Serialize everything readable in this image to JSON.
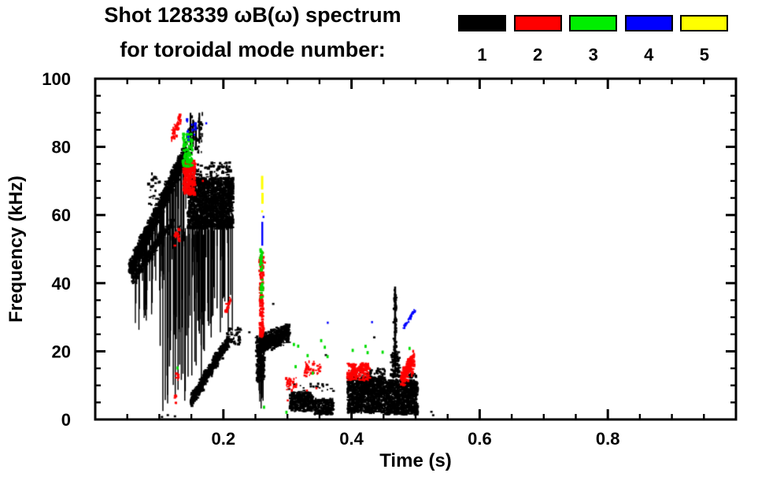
{
  "title": {
    "line1": "Shot 128339 ωB(ω) spectrum",
    "line2": "for toroidal mode number:"
  },
  "legend": {
    "items": [
      {
        "label": "1",
        "color": "#000000"
      },
      {
        "label": "2",
        "color": "#ff0000"
      },
      {
        "label": "3",
        "color": "#00ee00"
      },
      {
        "label": "4",
        "color": "#0000ff"
      },
      {
        "label": "5",
        "color": "#ffff00"
      }
    ]
  },
  "axes": {
    "x": {
      "label": "Time (s)",
      "min": 0,
      "max": 1.0,
      "major_ticks": [
        0.2,
        0.4,
        0.6,
        0.8
      ],
      "major_labels": [
        "0.2",
        "0.4",
        "0.6",
        "0.8"
      ],
      "minor_step": 0.05
    },
    "y": {
      "label": "Frequency (kHz)",
      "min": 0,
      "max": 100,
      "major_ticks": [
        0,
        20,
        40,
        60,
        80,
        100
      ],
      "major_labels": [
        "0",
        "20",
        "40",
        "60",
        "80",
        "100"
      ],
      "minor_step": 5
    }
  },
  "chart_data": {
    "type": "scatter",
    "subtype": "mode-spectrogram",
    "title": "Shot 128339 ωB(ω) spectrum for toroidal mode number",
    "xlabel": "Time (s)",
    "ylabel": "Frequency (kHz)",
    "xlim": [
      0,
      1.0
    ],
    "ylim": [
      0,
      100
    ],
    "grid": false,
    "legend_position": "top-right",
    "series": [
      {
        "name": "n=1",
        "mode": 1,
        "color": "#000000",
        "clusters": [
          {
            "kind": "diag",
            "from": [
              0.055,
              44
            ],
            "to": [
              0.143,
              79
            ],
            "th": 7,
            "n": 1500
          },
          {
            "kind": "diag",
            "from": [
              0.058,
              41
            ],
            "to": [
              0.12,
              58
            ],
            "th": 4,
            "n": 260
          },
          {
            "kind": "vlines",
            "t": [
              0.06,
              0.145
            ],
            "top": [
              46,
              78
            ],
            "len": [
              4,
              24
            ],
            "n": 75,
            "w": 1.4
          },
          {
            "kind": "vlines",
            "t": [
              0.1,
              0.172
            ],
            "top": [
              55,
              55
            ],
            "len": [
              18,
              52
            ],
            "n": 42,
            "w": 1.5
          },
          {
            "kind": "blob",
            "t": [
              0.145,
              0.215
            ],
            "f": [
              56,
              71
            ],
            "n": 1700
          },
          {
            "kind": "blob",
            "t": [
              0.15,
              0.212
            ],
            "f": [
              70.5,
              75.5
            ],
            "n": 80
          },
          {
            "kind": "vlines",
            "t": [
              0.147,
              0.215
            ],
            "top": [
              57,
              57
            ],
            "len": [
              6,
              32
            ],
            "n": 55,
            "w": 1.5
          },
          {
            "kind": "blob",
            "t": [
              0.082,
              0.102
            ],
            "f": [
              63,
              73
            ],
            "n": 28
          },
          {
            "kind": "blob",
            "t": [
              0.145,
              0.168
            ],
            "f": [
              78,
              90
            ],
            "n": 60,
            "w": 2,
            "h": 3.2
          },
          {
            "kind": "vdash",
            "at": 0.1487,
            "f": [
              79,
              90
            ],
            "w": 2.2
          },
          {
            "kind": "vdash",
            "at": 0.1527,
            "f": [
              80,
              88
            ],
            "w": 2.2
          },
          {
            "kind": "vdash",
            "at": 0.1572,
            "f": [
              79,
              86
            ],
            "w": 2.2
          },
          {
            "kind": "vdash",
            "at": 0.1625,
            "f": [
              81,
              90
            ],
            "w": 2.2
          },
          {
            "kind": "diag",
            "from": [
              0.15,
              5.5
            ],
            "to": [
              0.208,
              23
            ],
            "th": 4.5,
            "n": 600
          },
          {
            "kind": "blob",
            "t": [
              0.205,
              0.228
            ],
            "f": [
              22,
              27
            ],
            "n": 45
          },
          {
            "kind": "diag",
            "from": [
              0.2525,
              21.5
            ],
            "to": [
              0.302,
              25.5
            ],
            "th": 6.5,
            "n": 650
          },
          {
            "kind": "blob",
            "t": [
              0.252,
              0.264
            ],
            "f": [
              11,
              21
            ],
            "n": 170
          },
          {
            "kind": "blob",
            "t": [
              0.2575,
              0.2625
            ],
            "f": [
              12,
              26
            ],
            "n": 90
          },
          {
            "kind": "vlines",
            "t": [
              0.2545,
              0.2625
            ],
            "top": [
              12,
              12
            ],
            "len": [
              4,
              10
            ],
            "n": 8,
            "w": 1.4
          },
          {
            "kind": "blob",
            "t": [
              0.304,
              0.34
            ],
            "f": [
              2.5,
              8
            ],
            "n": 300
          },
          {
            "kind": "blob",
            "t": [
              0.342,
              0.372
            ],
            "f": [
              1.5,
              6
            ],
            "n": 200
          },
          {
            "kind": "blob",
            "t": [
              0.3,
              0.372
            ],
            "f": [
              8,
              10.5
            ],
            "n": 20
          },
          {
            "kind": "blob",
            "t": [
              0.394,
              0.452
            ],
            "f": [
              2,
              12.5
            ],
            "n": 950
          },
          {
            "kind": "blob",
            "t": [
              0.4,
              0.452
            ],
            "f": [
              12.5,
              15
            ],
            "n": 45
          },
          {
            "kind": "blob",
            "t": [
              0.453,
              0.503
            ],
            "f": [
              1.5,
              11.5
            ],
            "n": 850
          },
          {
            "kind": "blob",
            "t": [
              0.46,
              0.503
            ],
            "f": [
              11.5,
              13.5
            ],
            "n": 30
          },
          {
            "kind": "vdash",
            "at": 0.468,
            "f": [
              13,
              39
            ],
            "w": 2.6
          },
          {
            "kind": "blob",
            "t": [
              0.4655,
              0.4705
            ],
            "f": [
              14,
              38
            ],
            "n": 60,
            "w": 2,
            "h": 3
          },
          {
            "kind": "blob",
            "t": [
              0.462,
              0.475
            ],
            "f": [
              12,
              20
            ],
            "n": 70
          },
          {
            "kind": "specks",
            "pts": [
              [
                0.525,
                2.3
              ],
              [
                0.278,
                34
              ],
              [
                0.24,
                25.5
              ],
              [
                0.528,
                1.2
              ],
              [
                0.36,
                18.8
              ],
              [
                0.435,
                24
              ],
              [
                0.104,
                0.8
              ],
              [
                0.113,
                1.3
              ],
              [
                0.125,
                1.0
              ]
            ],
            "w": 3,
            "h": 2.6
          }
        ]
      },
      {
        "name": "n=2",
        "mode": 2,
        "color": "#ff0000",
        "clusters": [
          {
            "kind": "blob",
            "t": [
              0.138,
              0.156
            ],
            "f": [
              66,
              76
            ],
            "n": 260
          },
          {
            "kind": "diag",
            "from": [
              0.12,
              83
            ],
            "to": [
              0.133,
              88
            ],
            "th": 5,
            "n": 55,
            "w": 2.4,
            "h": 2.4
          },
          {
            "kind": "blob",
            "t": [
              0.124,
              0.132
            ],
            "f": [
              51,
              56
            ],
            "n": 22,
            "w": 2.4,
            "h": 2.4
          },
          {
            "kind": "blob",
            "t": [
              0.1265,
              0.13
            ],
            "f": [
              11.5,
              13.8
            ],
            "n": 10,
            "w": 2.4,
            "h": 2.4
          },
          {
            "kind": "blob",
            "t": [
              0.1235,
              0.127
            ],
            "f": [
              4.8,
              7.0
            ],
            "n": 8,
            "w": 2.4,
            "h": 2.4
          },
          {
            "kind": "blob",
            "t": [
              0.2565,
              0.2625
            ],
            "f": [
              24,
              48
            ],
            "n": 150,
            "w": 2.4,
            "h": 2.8
          },
          {
            "kind": "blob",
            "t": [
              0.297,
              0.315
            ],
            "f": [
              8.5,
              12.5
            ],
            "n": 28,
            "w": 2.4,
            "h": 2.4
          },
          {
            "kind": "blob",
            "t": [
              0.326,
              0.352
            ],
            "f": [
              12.5,
              17
            ],
            "n": 40,
            "w": 2.4,
            "h": 2.4
          },
          {
            "kind": "blob",
            "t": [
              0.394,
              0.428
            ],
            "f": [
              11.5,
              16.5
            ],
            "n": 160
          },
          {
            "kind": "diag",
            "from": [
              0.478,
              11.5
            ],
            "to": [
              0.497,
              17.5
            ],
            "th": 7,
            "n": 190
          },
          {
            "kind": "diag",
            "from": [
              0.203,
              31.5
            ],
            "to": [
              0.21,
              35.5
            ],
            "th": 2,
            "n": 14,
            "w": 2.4,
            "h": 2.4
          },
          {
            "kind": "specks",
            "pts": [
              [
                0.262,
                49
              ],
              [
                0.265,
                46
              ],
              [
                0.168,
                70
              ],
              [
                0.33,
                8.5
              ],
              [
                0.345,
                9.2
              ],
              [
                0.3,
                5.5
              ]
            ],
            "w": 2.6,
            "h": 2.6
          }
        ]
      },
      {
        "name": "n=3",
        "mode": 3,
        "color": "#00dd00",
        "clusters": [
          {
            "kind": "blob",
            "t": [
              0.137,
              0.152
            ],
            "f": [
              74,
              84
            ],
            "n": 110,
            "w": 2.6,
            "h": 2.6
          },
          {
            "kind": "blob",
            "t": [
              0.2575,
              0.261
            ],
            "f": [
              43.5,
              50
            ],
            "n": 20,
            "w": 2.4,
            "h": 2.6
          },
          {
            "kind": "blob",
            "t": [
              0.2585,
              0.2615
            ],
            "f": [
              35.5,
              41
            ],
            "n": 16,
            "w": 2.4,
            "h": 2.6
          },
          {
            "kind": "specks",
            "pts": [
              [
                0.31,
                21.9
              ],
              [
                0.317,
                21.5
              ],
              [
                0.353,
                23.1
              ],
              [
                0.363,
                18.5
              ],
              [
                0.332,
                18.7
              ],
              [
                0.422,
                21.5
              ],
              [
                0.425,
                19.6
              ],
              [
                0.402,
                20.2
              ],
              [
                0.49,
                20.8
              ],
              [
                0.313,
                15.5
              ],
              [
                0.358,
                21.2
              ],
              [
                0.449,
                19.8
              ],
              [
                0.128,
                15.0
              ],
              [
                0.263,
                3.7
              ],
              [
                0.298,
                2.2
              ],
              [
                0.34,
                13.5
              ]
            ],
            "w": 2.8,
            "h": 4
          }
        ]
      },
      {
        "name": "n=4",
        "mode": 4,
        "color": "#0000ff",
        "clusters": [
          {
            "kind": "blob",
            "t": [
              0.142,
              0.158
            ],
            "f": [
              82,
              88
            ],
            "n": 16,
            "w": 2.2,
            "h": 2.8
          },
          {
            "kind": "vdash",
            "at": 0.2607,
            "f": [
              51,
              58
            ],
            "w": 2.4
          },
          {
            "kind": "diag",
            "from": [
              0.4815,
              27
            ],
            "to": [
              0.486,
              28.6
            ],
            "th": 1.4,
            "n": 10,
            "w": 2.2,
            "h": 2.2
          },
          {
            "kind": "diag",
            "from": [
              0.4875,
              28.8
            ],
            "to": [
              0.492,
              30.2
            ],
            "th": 1.4,
            "n": 10,
            "w": 2.2,
            "h": 2.2
          },
          {
            "kind": "diag",
            "from": [
              0.494,
              30.6
            ],
            "to": [
              0.499,
              32.2
            ],
            "th": 1.4,
            "n": 9,
            "w": 2.2,
            "h": 2.2
          },
          {
            "kind": "specks",
            "pts": [
              [
                0.363,
                28.4
              ],
              [
                0.432,
                28.6
              ],
              [
                0.173,
                86.8
              ],
              [
                0.262,
                59.5
              ]
            ],
            "w": 2.4,
            "h": 2.8
          }
        ]
      },
      {
        "name": "n=5",
        "mode": 5,
        "color": "#ffff00",
        "clusters": [
          {
            "kind": "vdash",
            "at": 0.2605,
            "f": [
              67.5,
              71.5
            ],
            "w": 3
          },
          {
            "kind": "vdash",
            "at": 0.261,
            "f": [
              63.3,
              66.5
            ],
            "w": 3
          },
          {
            "kind": "specks",
            "pts": [
              [
                0.26,
                61.0
              ]
            ],
            "w": 2.5,
            "h": 3
          }
        ]
      }
    ]
  }
}
